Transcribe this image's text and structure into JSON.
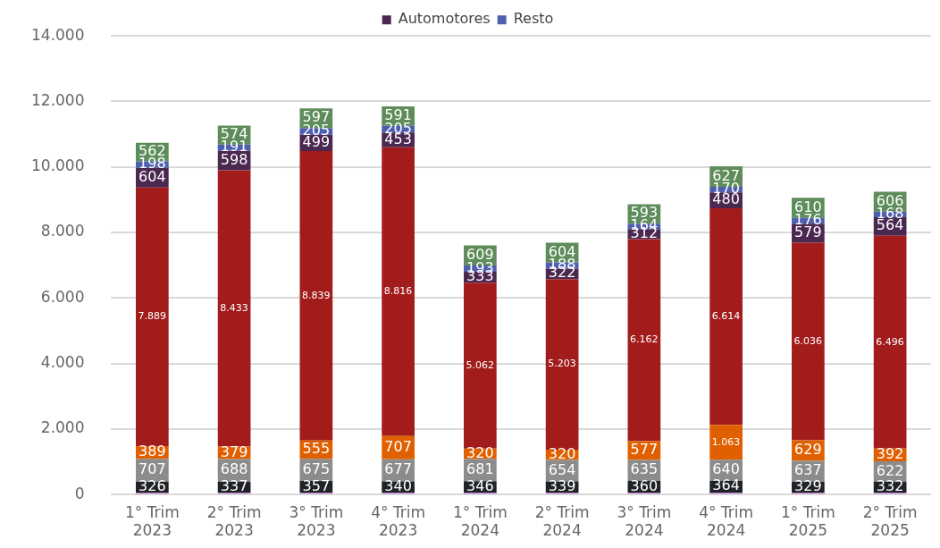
{
  "chart_data": {
    "type": "bar",
    "stacked": true,
    "legend": "top",
    "grid": "y",
    "categories": [
      "1° Trim\n2023",
      "2° Trim\n2023",
      "3° Trim\n2023",
      "4° Trim\n2023",
      "1° Trim\n2024",
      "2° Trim\n2024",
      "3° Trim\n2024",
      "4° Trim\n2024",
      "1° Trim\n2025",
      "2° Trim\n2025"
    ],
    "ylim": [
      0,
      14000
    ],
    "yticks": [
      {
        "value": 0,
        "label": "0"
      },
      {
        "value": 2000,
        "label": "2.000"
      },
      {
        "value": 4000,
        "label": "4.000"
      },
      {
        "value": 6000,
        "label": "6.000"
      },
      {
        "value": 8000,
        "label": "8.000"
      },
      {
        "value": 10000,
        "label": "10.000"
      },
      {
        "value": 12000,
        "label": "12.000"
      },
      {
        "value": 14000,
        "label": "14.000"
      }
    ],
    "series": [
      {
        "color": "#c080d0",
        "values": [
          60,
          60,
          60,
          60,
          60,
          60,
          60,
          60,
          60,
          60
        ],
        "value_labels": [
          null,
          null,
          null,
          null,
          null,
          null,
          null,
          null,
          null,
          null
        ]
      },
      {
        "color": "#1f2328",
        "values": [
          326,
          337,
          357,
          340,
          346,
          339,
          360,
          364,
          329,
          332
        ],
        "value_labels": [
          "326",
          "337",
          "357",
          "340",
          "346",
          "339",
          "360",
          "364",
          "329",
          "332"
        ]
      },
      {
        "color": "#8c8c8c",
        "values": [
          707,
          688,
          675,
          677,
          681,
          654,
          635,
          640,
          637,
          622
        ],
        "value_labels": [
          "707",
          "688",
          "675",
          "677",
          "681",
          "654",
          "635",
          "640",
          "637",
          "622"
        ]
      },
      {
        "color": "#e06000",
        "values": [
          389,
          379,
          555,
          707,
          320,
          320,
          577,
          1063,
          629,
          392
        ],
        "value_labels": [
          "389",
          "379",
          "555",
          "707",
          "320",
          "320",
          "577",
          "1.063",
          "629",
          "392"
        ]
      },
      {
        "color": "#a21c1c",
        "values": [
          7889,
          8433,
          8839,
          8816,
          5062,
          5203,
          6162,
          6614,
          6036,
          6496
        ],
        "value_labels": [
          "7.889",
          "8.433",
          "8.839",
          "8.816",
          "5.062",
          "5.203",
          "6.162",
          "6.614",
          "6.036",
          "6.496"
        ]
      },
      {
        "name": "Automotores",
        "color": "#4a2850",
        "values": [
          604,
          598,
          499,
          453,
          333,
          322,
          312,
          480,
          579,
          564
        ],
        "value_labels": [
          "604",
          "598",
          "499",
          "453",
          "333",
          "322",
          "312",
          "480",
          "579",
          "564"
        ]
      },
      {
        "name": "Resto",
        "color": "#4f5fb0",
        "values": [
          198,
          191,
          205,
          205,
          193,
          188,
          164,
          170,
          176,
          168
        ],
        "value_labels": [
          "198",
          "191",
          "205",
          "205",
          "193",
          "188",
          "164",
          "170",
          "176",
          "168"
        ]
      },
      {
        "color": "#5e8c5a",
        "values": [
          562,
          574,
          597,
          591,
          609,
          604,
          593,
          627,
          610,
          606
        ],
        "value_labels": [
          "562",
          "574",
          "597",
          "591",
          "609",
          "604",
          "593",
          "627",
          "610",
          "606"
        ]
      }
    ]
  }
}
